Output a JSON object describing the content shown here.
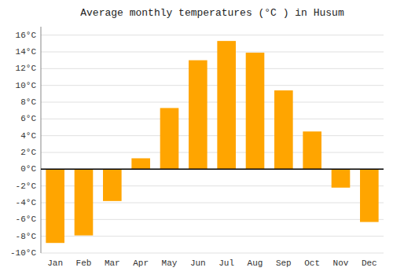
{
  "chart_data": {
    "type": "bar",
    "title": "Average monthly temperatures (°C ) in Husum",
    "categories": [
      "Jan",
      "Feb",
      "Mar",
      "Apr",
      "May",
      "Jun",
      "Jul",
      "Aug",
      "Sep",
      "Oct",
      "Nov",
      "Dec"
    ],
    "values": [
      -8.8,
      -7.9,
      -3.8,
      1.3,
      7.3,
      13.0,
      15.3,
      13.9,
      9.4,
      4.5,
      -2.2,
      -6.3
    ],
    "color": "#FFA500",
    "ylim": [
      -10,
      17
    ],
    "yticks": [
      {
        "value": -10,
        "label": "-10°C"
      },
      {
        "value": -8,
        "label": "-8°C"
      },
      {
        "value": -6,
        "label": "-6°C"
      },
      {
        "value": -4,
        "label": "-4°C"
      },
      {
        "value": -2,
        "label": "-2°C"
      },
      {
        "value": 0,
        "label": "0°C"
      },
      {
        "value": 2,
        "label": "2°C"
      },
      {
        "value": 4,
        "label": "4°C"
      },
      {
        "value": 6,
        "label": "6°C"
      },
      {
        "value": 8,
        "label": "8°C"
      },
      {
        "value": 10,
        "label": "10°C"
      },
      {
        "value": 12,
        "label": "12°C"
      },
      {
        "value": 14,
        "label": "14°C"
      },
      {
        "value": 16,
        "label": "16°C"
      }
    ],
    "grid": true
  }
}
